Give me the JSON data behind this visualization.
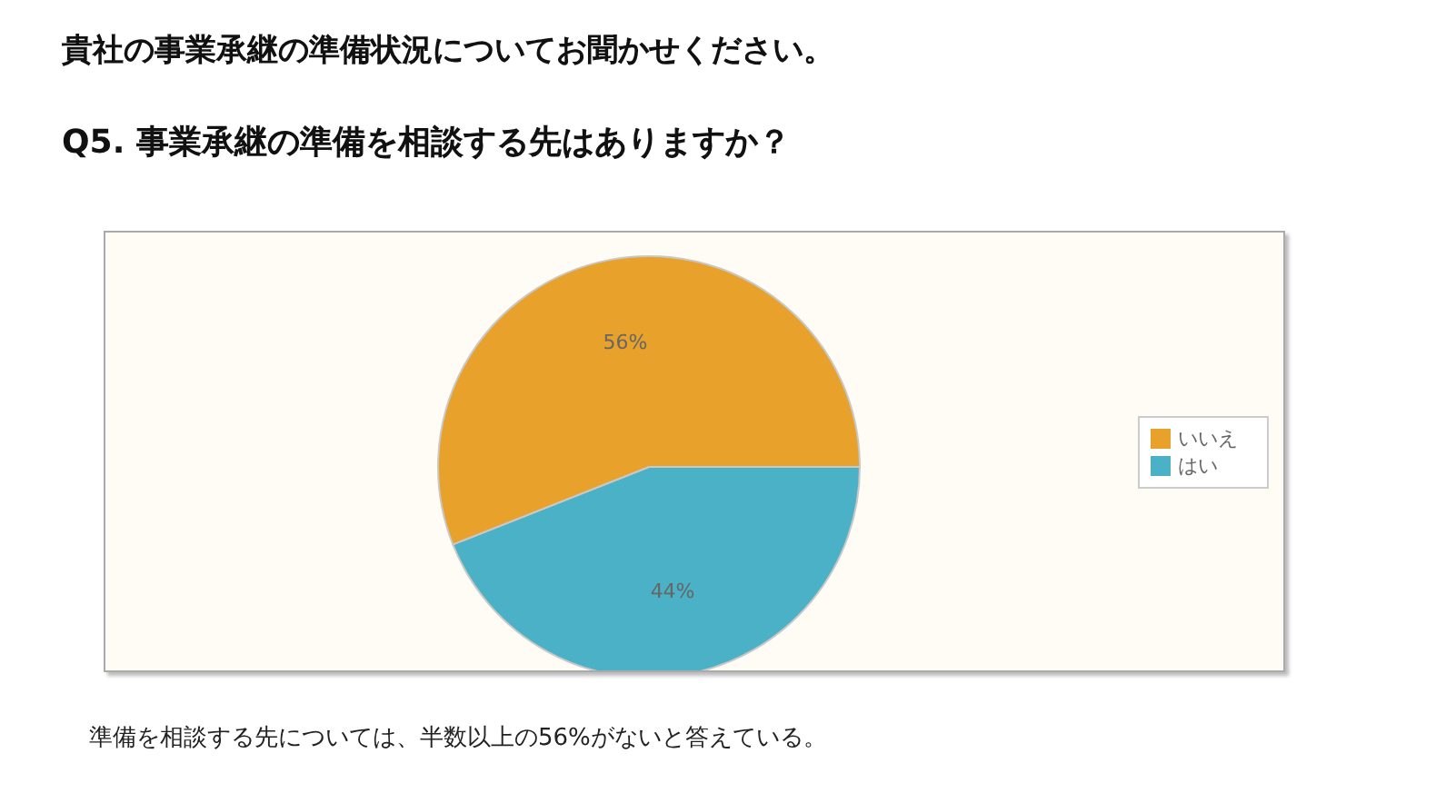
{
  "chart_data": {
    "type": "pie",
    "title": "貴社の事業承継の準備状況についてお聞かせください。",
    "subtitle": "Q5. 事業承継の準備を相談する先はありますか？",
    "categories": [
      "はい",
      "いいえ"
    ],
    "values": [
      44,
      56
    ],
    "colors": [
      "#4ab1c6",
      "#e8a22b"
    ],
    "value_labels": [
      "44%",
      "56%"
    ],
    "legend": "right",
    "annotations": [
      "準備を相談する先については、半数以上の56%がないと答えている。"
    ]
  }
}
